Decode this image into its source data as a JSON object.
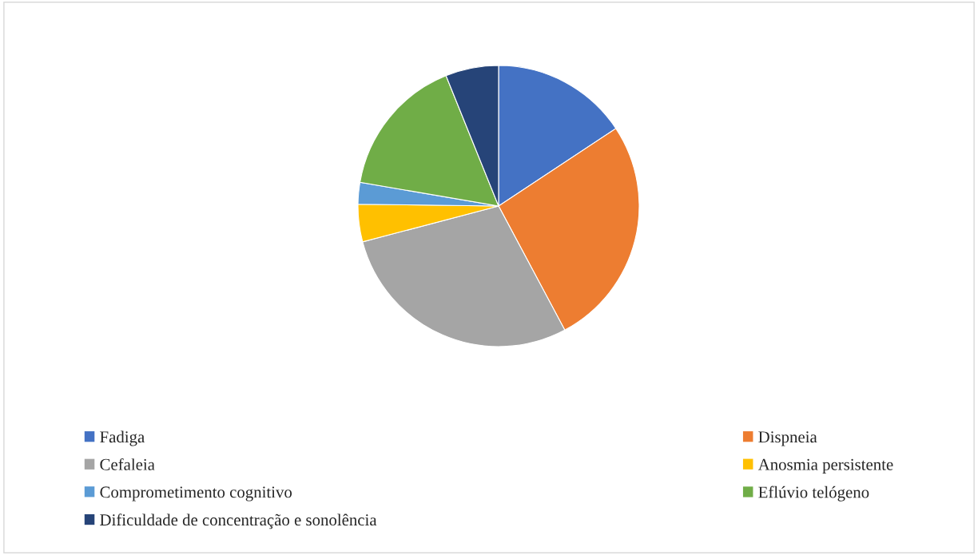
{
  "chart_data": {
    "type": "pie",
    "categories": [
      "Fadiga",
      "Dispneia",
      "Cefaleia",
      "Anosmia persistente",
      "Comprometimento cognitivo",
      "Eflúvio telógeno",
      "Dificuldade de concentração e sonolência"
    ],
    "values": [
      15.7,
      26.5,
      28.7,
      4.3,
      2.5,
      16.2,
      6.1
    ],
    "colors": [
      "#4472c4",
      "#ed7d31",
      "#a5a5a5",
      "#ffc000",
      "#5b9bd5",
      "#70ad47",
      "#264478"
    ],
    "legend": "bottom"
  }
}
